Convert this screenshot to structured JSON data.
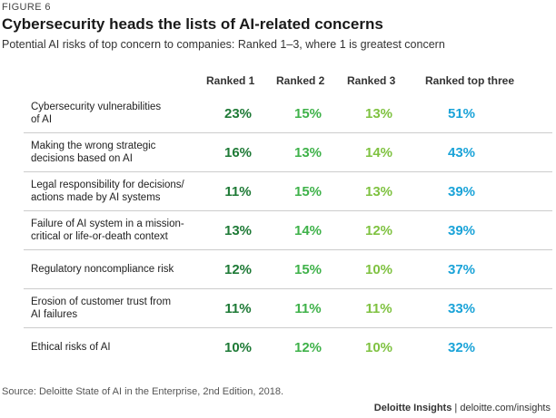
{
  "figure_label": "FIGURE 6",
  "title": "Cybersecurity heads the lists of AI-related concerns",
  "subtitle": "Potential AI risks of top concern to companies: Ranked 1–3, where 1 is greatest concern",
  "source": "Source: Deloitte State of AI in the Enterprise, 2nd Edition, 2018.",
  "credit": {
    "brand": "Deloitte Insights",
    "separator": " | ",
    "url": "deloitte.com/insights"
  },
  "colors": {
    "ranked_1": "#1e7a36",
    "ranked_2": "#3fb24a",
    "ranked_3": "#7fc241",
    "ranked_top_three": "#1aa3d8"
  },
  "chart_data": {
    "type": "table",
    "columns": [
      "Ranked 1",
      "Ranked 2",
      "Ranked 3",
      "Ranked top three"
    ],
    "rows": [
      {
        "label": "Cybersecurity vulnerabilities\n of AI",
        "values": [
          "23%",
          "15%",
          "13%",
          "51%"
        ]
      },
      {
        "label": "Making the wrong strategic\ndecisions based on AI",
        "values": [
          "16%",
          "13%",
          "14%",
          "43%"
        ]
      },
      {
        "label": "Legal responsibility for decisions/\nactions made by AI systems",
        "values": [
          "11%",
          "15%",
          "13%",
          "39%"
        ]
      },
      {
        "label": "Failure of AI system in a mission-\ncritical or life-or-death context",
        "values": [
          "13%",
          "14%",
          "12%",
          "39%"
        ]
      },
      {
        "label": "Regulatory noncompliance risk",
        "values": [
          "12%",
          "15%",
          "10%",
          "37%"
        ]
      },
      {
        "label": "Erosion of customer trust from\nAI failures",
        "values": [
          "11%",
          "11%",
          "11%",
          "33%"
        ]
      },
      {
        "label": "Ethical risks of AI",
        "values": [
          "10%",
          "12%",
          "10%",
          "32%"
        ]
      }
    ]
  }
}
